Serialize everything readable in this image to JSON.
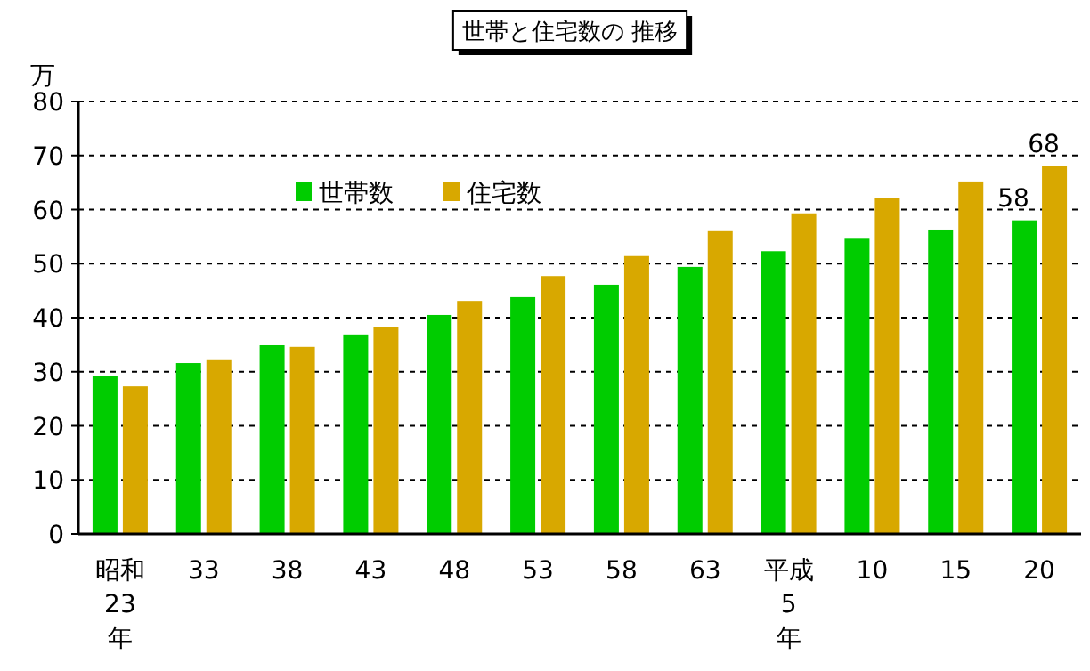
{
  "chart_data": {
    "type": "bar",
    "title": "世帯と住宅数の 推移",
    "ylabel": "万",
    "categories": [
      "昭和\n23\n年",
      "33",
      "38",
      "43",
      "48",
      "53",
      "58",
      "63",
      "平成\n5\n年",
      "10",
      "15",
      "20"
    ],
    "series": [
      {
        "name": "世帯数",
        "color": "#00cc00",
        "values": [
          29.3,
          31.6,
          34.9,
          36.9,
          40.5,
          43.8,
          46.1,
          49.4,
          52.3,
          54.6,
          56.3,
          58
        ],
        "value_labels": [
          null,
          null,
          null,
          null,
          null,
          null,
          null,
          null,
          null,
          null,
          null,
          "58"
        ]
      },
      {
        "name": "住宅数",
        "color": "#d8a800",
        "values": [
          27.3,
          32.3,
          34.6,
          38.2,
          43.1,
          47.7,
          51.4,
          56.0,
          59.3,
          62.2,
          65.2,
          68
        ],
        "value_labels": [
          null,
          null,
          null,
          null,
          null,
          null,
          null,
          null,
          null,
          null,
          null,
          "68"
        ]
      }
    ],
    "ylim": [
      0,
      80
    ],
    "yticks": [
      0,
      10,
      20,
      30,
      40,
      50,
      60,
      70,
      80
    ],
    "grid": "y",
    "legend": "top"
  }
}
